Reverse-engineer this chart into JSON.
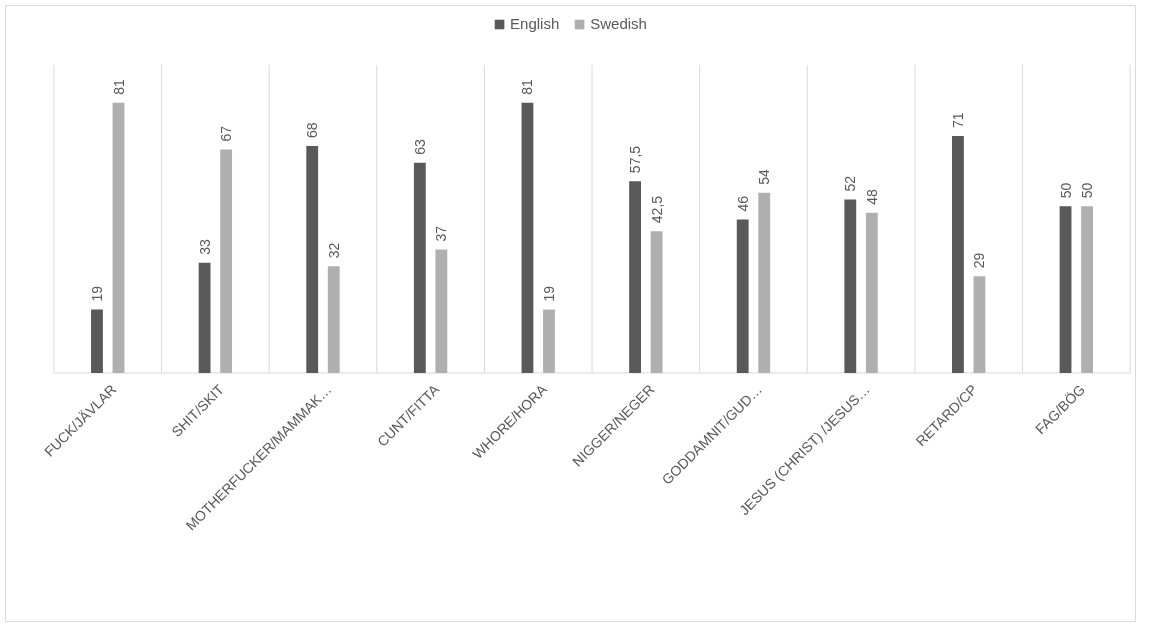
{
  "chart_data": {
    "type": "bar",
    "categories": [
      "FUCK/JÄVLAR",
      "SHIT/SKIT",
      "MOTHERFUCKER/MAMMAK…",
      "CUNT/FITTA",
      "WHORE/HORA",
      "NIGGER/NEGER",
      "GODDAMNIT/GUD…",
      "JESUS (CHRIST) /JESUS…",
      "RETARD/CP",
      "FAG/BÖG"
    ],
    "series": [
      {
        "name": "English",
        "color": "#595959",
        "values": [
          19,
          33,
          68,
          63,
          81,
          57.5,
          46,
          52,
          71,
          50
        ],
        "value_labels": [
          "19",
          "33",
          "68",
          "63",
          "81",
          "57,5",
          "46",
          "52",
          "71",
          "50"
        ]
      },
      {
        "name": "Swedish",
        "color": "#afafaf",
        "values": [
          81,
          67,
          32,
          37,
          19,
          42.5,
          54,
          48,
          29,
          50
        ],
        "value_labels": [
          "81",
          "67",
          "32",
          "37",
          "19",
          "42,5",
          "54",
          "48",
          "29",
          "50"
        ]
      }
    ],
    "grid": "x",
    "legend": "top"
  }
}
